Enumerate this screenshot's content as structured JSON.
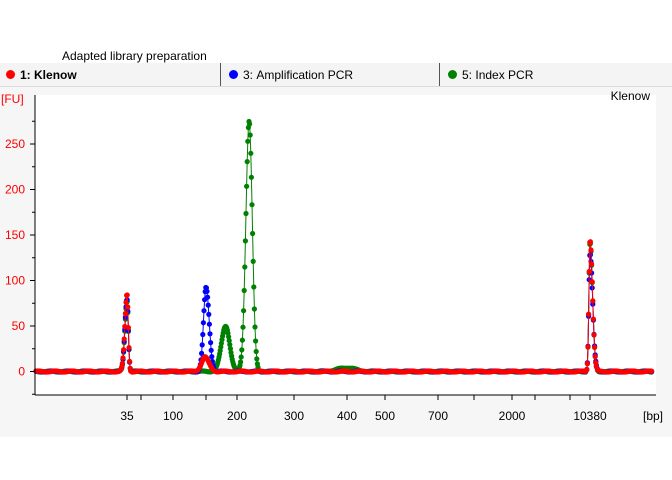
{
  "caption": "Adapted library preparation",
  "tabs": [
    {
      "number": "1:",
      "label": "Klenow",
      "color": "#ff0000",
      "active": true
    },
    {
      "number": "3:",
      "label": "Amplification PCR",
      "color": "#0000ff",
      "active": false
    },
    {
      "number": "5:",
      "label": "Index PCR",
      "color": "#008000",
      "active": false
    }
  ],
  "chart_data": {
    "type": "line",
    "title": "Klenow",
    "ylabel": "[FU]",
    "xlabel": "[bp]",
    "xscale": "electrophoresis-ladder",
    "ylim": [
      -30,
      295
    ],
    "yticks": [
      0,
      50,
      100,
      150,
      200,
      250
    ],
    "xticks": [
      "35",
      "100",
      "200",
      "300",
      "400",
      "500",
      "700",
      "2000",
      "10380"
    ],
    "ladder_bp": [
      35,
      50,
      100,
      150,
      200,
      300,
      400,
      500,
      700,
      1000,
      2000,
      3000,
      7000,
      10380
    ],
    "grid": false,
    "series": [
      {
        "name": "1: Klenow",
        "color": "#ff0000",
        "peaks": [
          {
            "bp": 35,
            "height": 85,
            "width_bp": 1.2
          },
          {
            "bp": 148,
            "height": 16,
            "width_bp": 6
          },
          {
            "bp": 10380,
            "height": 145,
            "width_bp": 220
          }
        ]
      },
      {
        "name": "3: Amplification PCR",
        "color": "#0000ff",
        "peaks": [
          {
            "bp": 35,
            "height": 80,
            "width_bp": 1.2
          },
          {
            "bp": 150,
            "height": 92,
            "width_bp": 4.5
          },
          {
            "bp": 10380,
            "height": 130,
            "width_bp": 230
          }
        ]
      },
      {
        "name": "5: Index PCR",
        "color": "#008000",
        "peaks": [
          {
            "bp": 35,
            "height": 78,
            "width_bp": 1.2
          },
          {
            "bp": 180,
            "height": 50,
            "width_bp": 7
          },
          {
            "bp": 218,
            "height": 275,
            "width_bp": 5
          },
          {
            "bp": 400,
            "height": 4,
            "width_bp": 20
          },
          {
            "bp": 10380,
            "height": 142,
            "width_bp": 220
          }
        ]
      }
    ]
  }
}
